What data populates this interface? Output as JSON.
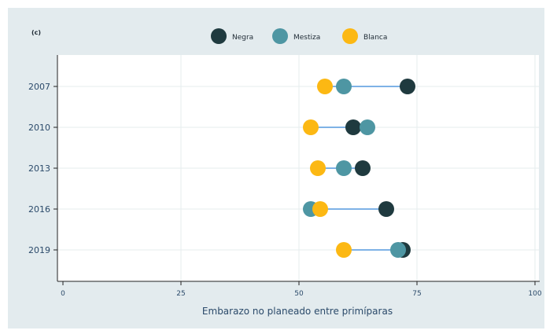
{
  "chart_data": {
    "type": "dot",
    "panel_label": "(c)",
    "xlabel": "Embarazo no planeado entre primíparas",
    "ylabel": "",
    "xlim": [
      0,
      100
    ],
    "xticks": [
      "0",
      "25",
      "50",
      "75",
      "100"
    ],
    "categories": [
      "2007",
      "2010",
      "2013",
      "2016",
      "2019"
    ],
    "legend_position": "top",
    "grid": true,
    "series": [
      {
        "name": "Negra",
        "color": "#1f3a3f",
        "values": [
          73,
          61.5,
          63.5,
          68.5,
          72
        ]
      },
      {
        "name": "Mestiza",
        "color": "#4e96a3",
        "values": [
          59.5,
          64.5,
          59.5,
          52.5,
          71
        ]
      },
      {
        "name": "Blanca",
        "color": "#fcb813",
        "values": [
          55.5,
          52.5,
          54,
          54.5,
          59.5
        ]
      }
    ],
    "connector_color": "#7eb2e6",
    "colors": {
      "background": "#e3ebee",
      "plot_background": "#ffffff",
      "grid": "#e6ecee",
      "axis": "#222222",
      "text": "#2b4a6a"
    }
  }
}
